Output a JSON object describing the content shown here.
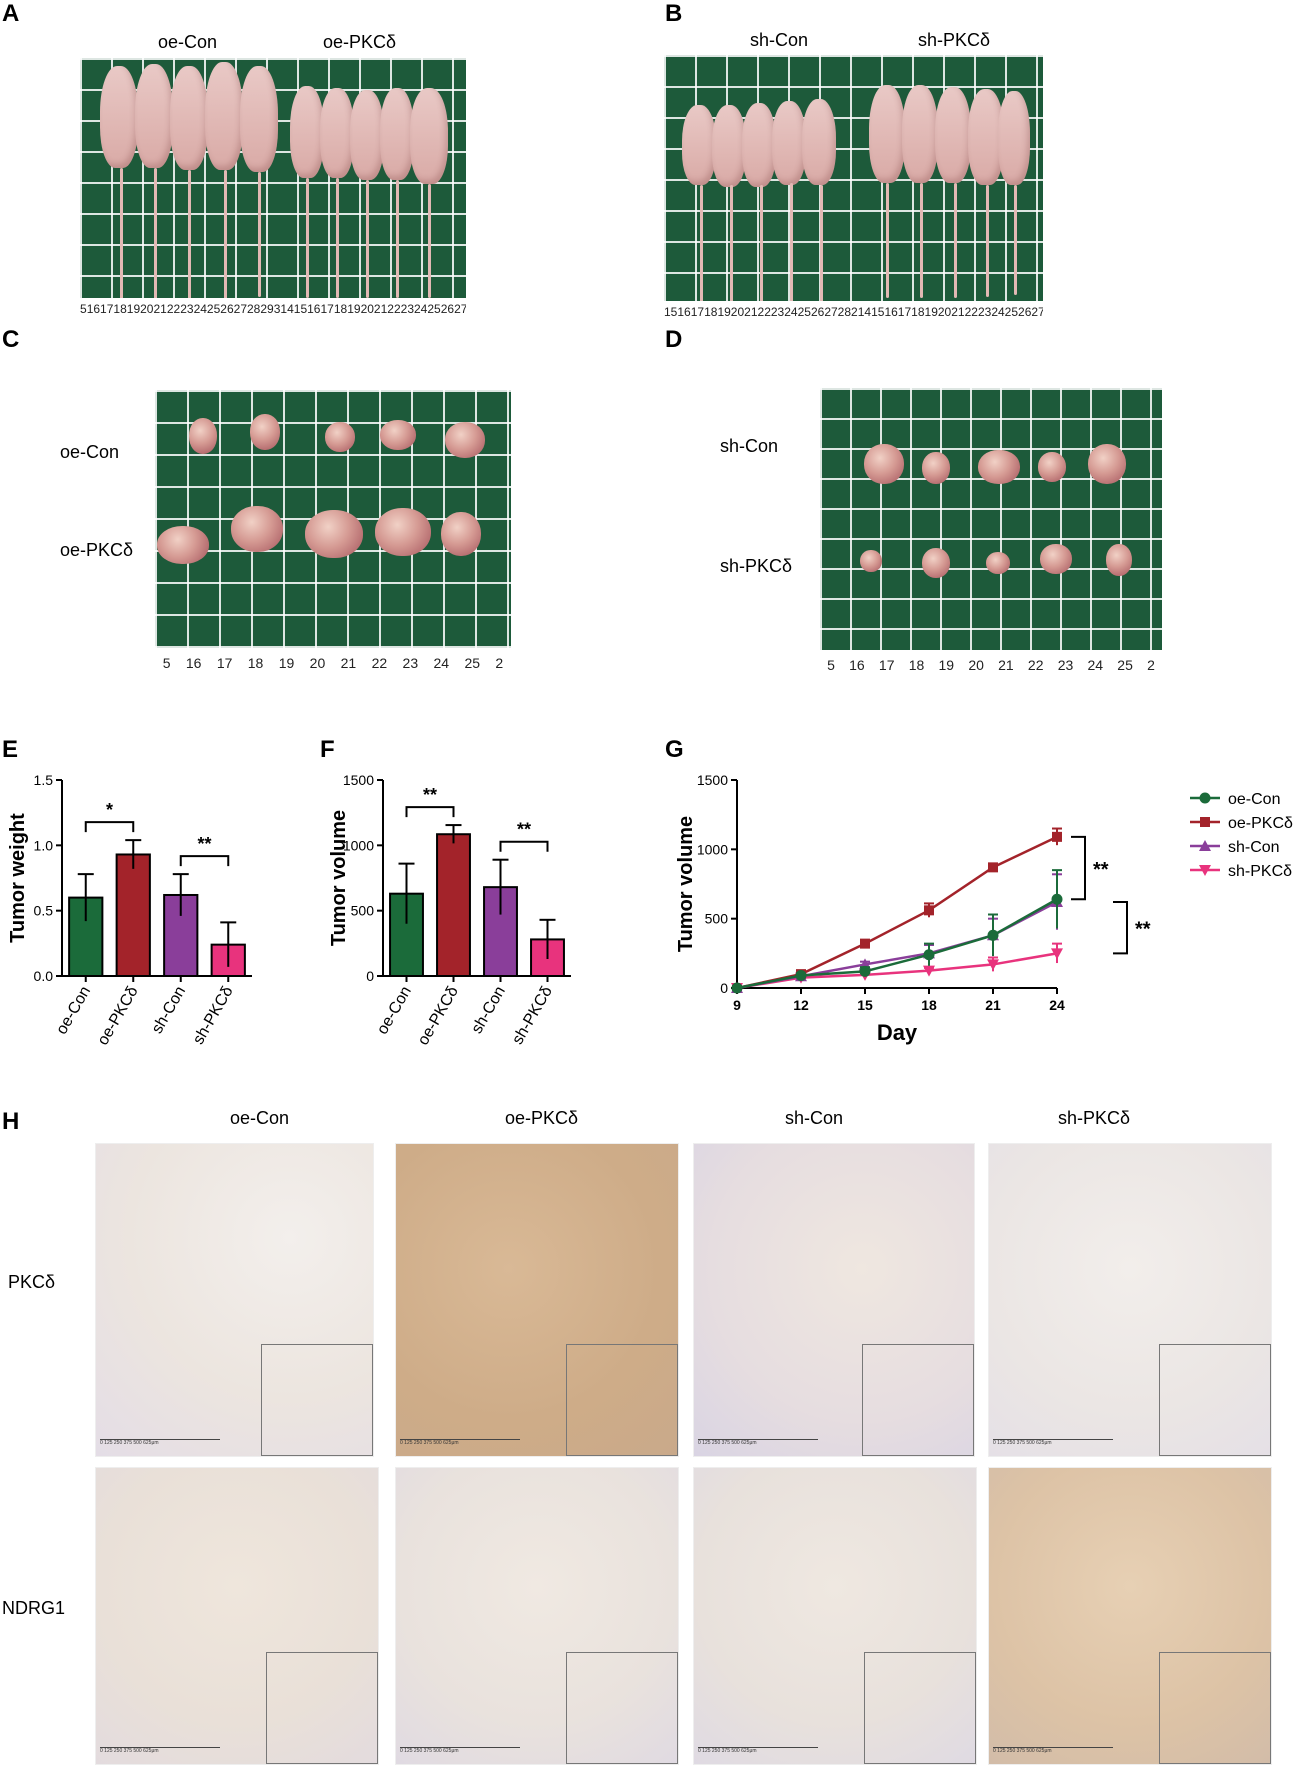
{
  "panels": {
    "A": {
      "letter": "A",
      "labels": [
        "oe-Con",
        "oe-PKCδ"
      ],
      "ruler": [
        "5",
        "16",
        "17",
        "18",
        "19",
        "20",
        "21",
        "22",
        "23",
        "24",
        "25",
        "26",
        "27",
        "28",
        "29",
        "3",
        "14",
        "15",
        "16",
        "17",
        "18",
        "19",
        "20",
        "21",
        "22",
        "23",
        "24",
        "25",
        "26",
        "27"
      ]
    },
    "B": {
      "letter": "B",
      "labels": [
        "sh-Con",
        "sh-PKCδ"
      ],
      "ruler": [
        "15",
        "16",
        "17",
        "18",
        "19",
        "20",
        "21",
        "22",
        "23",
        "24",
        "25",
        "26",
        "27",
        "28",
        "2",
        "14",
        "15",
        "16",
        "17",
        "18",
        "19",
        "20",
        "21",
        "22",
        "23",
        "24",
        "25",
        "26",
        "27",
        "28"
      ]
    },
    "C": {
      "letter": "C",
      "row_labels": [
        "oe-Con",
        "oe-PKCδ"
      ],
      "ruler": [
        "5",
        "16",
        "17",
        "18",
        "19",
        "20",
        "21",
        "22",
        "23",
        "24",
        "25",
        "2"
      ]
    },
    "D": {
      "letter": "D",
      "row_labels": [
        "sh-Con",
        "sh-PKCδ"
      ],
      "ruler": [
        "5",
        "16",
        "17",
        "18",
        "19",
        "20",
        "21",
        "22",
        "23",
        "24",
        "25",
        "2"
      ]
    },
    "E": {
      "letter": "E"
    },
    "F": {
      "letter": "F"
    },
    "G": {
      "letter": "G"
    },
    "H": {
      "letter": "H",
      "columns": [
        "oe-Con",
        "oe-PKCδ",
        "sh-Con",
        "sh-PKCδ"
      ],
      "rows": [
        "PKCδ",
        "NDRG1"
      ],
      "scale_ticks": "0   125   250   375   500   625μm"
    }
  },
  "colors": {
    "oe-Con": "#1b6b3a",
    "oe-PKCδ": "#a3232a",
    "sh-Con": "#8a3e9a",
    "sh-PKCδ": "#e8337d",
    "grid_green": "#1d5a3a"
  },
  "chart_data": [
    {
      "id": "E",
      "type": "bar",
      "categories": [
        "oe-Con",
        "oe-PKCδ",
        "sh-Con",
        "sh-PKCδ"
      ],
      "values": [
        0.6,
        0.93,
        0.62,
        0.24
      ],
      "errors": [
        0.18,
        0.11,
        0.16,
        0.17
      ],
      "ylabel": "Tumor weight",
      "ylim": [
        0,
        1.5
      ],
      "yticks": [
        "0.0",
        "0.5",
        "1.0",
        "1.5"
      ],
      "significance": [
        {
          "pair": [
            0,
            1
          ],
          "label": "*"
        },
        {
          "pair": [
            2,
            3
          ],
          "label": "**"
        }
      ]
    },
    {
      "id": "F",
      "type": "bar",
      "categories": [
        "oe-Con",
        "oe-PKCδ",
        "sh-Con",
        "sh-PKCδ"
      ],
      "values": [
        630,
        1085,
        680,
        280
      ],
      "errors": [
        230,
        70,
        210,
        150
      ],
      "ylabel": "Tumor volume",
      "ylim": [
        0,
        1500
      ],
      "yticks": [
        "0",
        "500",
        "1000",
        "1500"
      ],
      "significance": [
        {
          "pair": [
            0,
            1
          ],
          "label": "**"
        },
        {
          "pair": [
            2,
            3
          ],
          "label": "**"
        }
      ]
    },
    {
      "id": "G",
      "type": "line",
      "x": [
        9,
        12,
        15,
        18,
        21,
        24
      ],
      "xlabel": "Day",
      "ylabel": "Tumor volume",
      "ylim": [
        0,
        1500
      ],
      "yticks": [
        "0",
        "500",
        "1000",
        "1500"
      ],
      "xticks": [
        "9",
        "12",
        "15",
        "18",
        "21",
        "24"
      ],
      "series": [
        {
          "name": "oe-Con",
          "values": [
            0,
            90,
            120,
            240,
            380,
            640
          ],
          "errors": [
            0,
            15,
            30,
            80,
            150,
            210
          ]
        },
        {
          "name": "oe-PKCδ",
          "values": [
            0,
            100,
            320,
            560,
            870,
            1090
          ],
          "errors": [
            0,
            15,
            20,
            50,
            20,
            60
          ]
        },
        {
          "name": "sh-Con",
          "values": [
            0,
            85,
            170,
            250,
            380,
            620
          ],
          "errors": [
            0,
            15,
            20,
            60,
            120,
            200
          ]
        },
        {
          "name": "sh-PKCδ",
          "values": [
            0,
            75,
            95,
            125,
            170,
            250
          ],
          "errors": [
            0,
            10,
            15,
            20,
            50,
            70
          ]
        }
      ],
      "legend": "right",
      "significance": [
        "**",
        "**"
      ]
    }
  ]
}
